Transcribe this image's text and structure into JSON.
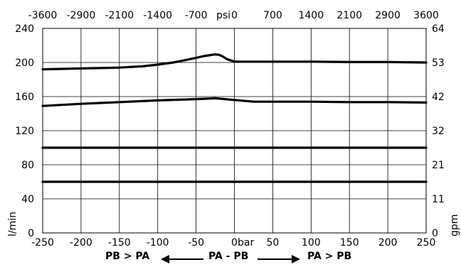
{
  "chart_data": {
    "type": "line",
    "xlabel": "bar",
    "x2label": "psi",
    "ylabel": "l/min",
    "y2label": "gpm",
    "xlim": [
      -250,
      250
    ],
    "ylim": [
      0,
      240
    ],
    "grid": true,
    "x_ticks": [
      -250,
      -200,
      -150,
      -100,
      -50,
      0,
      50,
      100,
      150,
      200,
      250
    ],
    "x_tick_labels": [
      "-250",
      "-200",
      "-150",
      "-100",
      "-50",
      "0",
      "50",
      "100",
      "150",
      "200",
      "250"
    ],
    "y_ticks": [
      0,
      40,
      80,
      120,
      160,
      200,
      240
    ],
    "y_tick_labels": [
      "0",
      "40",
      "80",
      "120",
      "160",
      "200",
      "240"
    ],
    "x2_tick_labels": [
      "-3600",
      "-2900",
      "-2100",
      "-1400",
      "-700",
      "0",
      "700",
      "1400",
      "2100",
      "2900",
      "3600"
    ],
    "y2_tick_labels": [
      "0",
      "11",
      "21",
      "32",
      "42",
      "53",
      "64"
    ],
    "series": [
      {
        "x": [
          -250,
          -200,
          -150,
          -120,
          -100,
          -80,
          -60,
          -40,
          -25,
          -20,
          -15,
          -10,
          0,
          50,
          100,
          150,
          200,
          250
        ],
        "y": [
          192,
          193,
          194,
          195.5,
          197.5,
          200,
          203.5,
          207.5,
          209.5,
          209,
          207,
          204,
          201,
          201,
          201,
          200.5,
          200.5,
          200
        ]
      },
      {
        "x": [
          -250,
          -200,
          -150,
          -100,
          -50,
          -25,
          0,
          25,
          50,
          100,
          150,
          200,
          250
        ],
        "y": [
          149,
          151.5,
          153.5,
          155.5,
          157,
          158,
          156,
          154,
          154,
          154,
          153.5,
          153.5,
          153
        ]
      },
      {
        "x": [
          -250,
          250
        ],
        "y": [
          100,
          100
        ]
      },
      {
        "x": [
          -250,
          250
        ],
        "y": [
          60,
          60
        ]
      }
    ]
  },
  "footer": {
    "left_label": "PB > PA",
    "center_label": "PA - PB",
    "right_label": "PA > PB"
  }
}
